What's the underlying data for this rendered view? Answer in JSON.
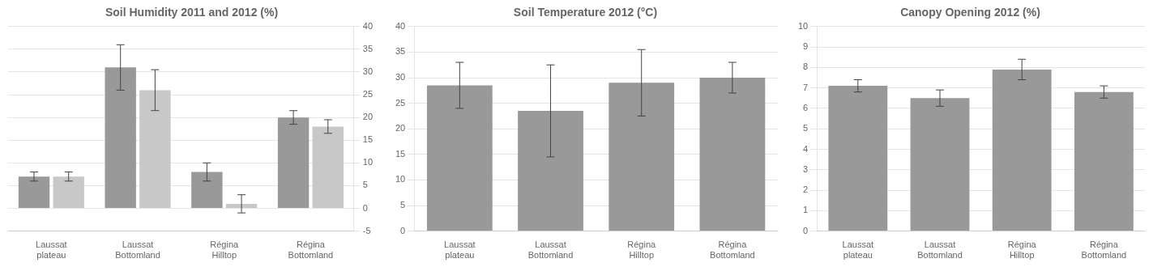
{
  "chart_data": [
    {
      "type": "bar",
      "title": "Soil Humidity 2011 and 2012 (%)",
      "categories": [
        "Laussat\nplateau",
        "Laussat\nBottomland",
        "Régina\nHilltop",
        "Régina\nBottomland"
      ],
      "series": [
        {
          "color": "#999999",
          "values": [
            7.0,
            31.0,
            8.0,
            20.0
          ],
          "errors": [
            1.0,
            5.0,
            2.0,
            1.5
          ]
        },
        {
          "color": "#c8c8c8",
          "values": [
            7.0,
            26.0,
            1.0,
            18.0
          ],
          "errors": [
            1.0,
            4.5,
            2.0,
            1.5
          ]
        }
      ],
      "ylim": [
        -5,
        40
      ],
      "yticks": [
        -5,
        0,
        5,
        10,
        15,
        20,
        25,
        30,
        35,
        40
      ],
      "grid": true
    },
    {
      "type": "bar",
      "title": "Soil Temperature 2012 (°C)",
      "categories": [
        "Laussat\nplateau",
        "Laussat\nBottomland",
        "Régina\nHilltop",
        "Régina\nBottomland"
      ],
      "values": [
        28.5,
        23.5,
        29.0,
        30.0
      ],
      "errors": [
        4.5,
        9.0,
        6.5,
        3.0
      ],
      "color": "#999999",
      "ylim": [
        0,
        40
      ],
      "yticks": [
        0,
        5,
        10,
        15,
        20,
        25,
        30,
        35,
        40
      ],
      "grid": true
    },
    {
      "type": "bar",
      "title": "Canopy Opening 2012 (%)",
      "categories": [
        "Laussat\nplateau",
        "Laussat\nBottomland",
        "Régina\nHilltop",
        "Régina\nBottomland"
      ],
      "values": [
        7.1,
        6.5,
        7.9,
        6.8
      ],
      "errors": [
        0.3,
        0.4,
        0.5,
        0.3
      ],
      "color": "#999999",
      "ylim": [
        0,
        10
      ],
      "yticks": [
        0,
        1,
        2,
        3,
        4,
        5,
        6,
        7,
        8,
        9,
        10
      ],
      "grid": true
    }
  ]
}
